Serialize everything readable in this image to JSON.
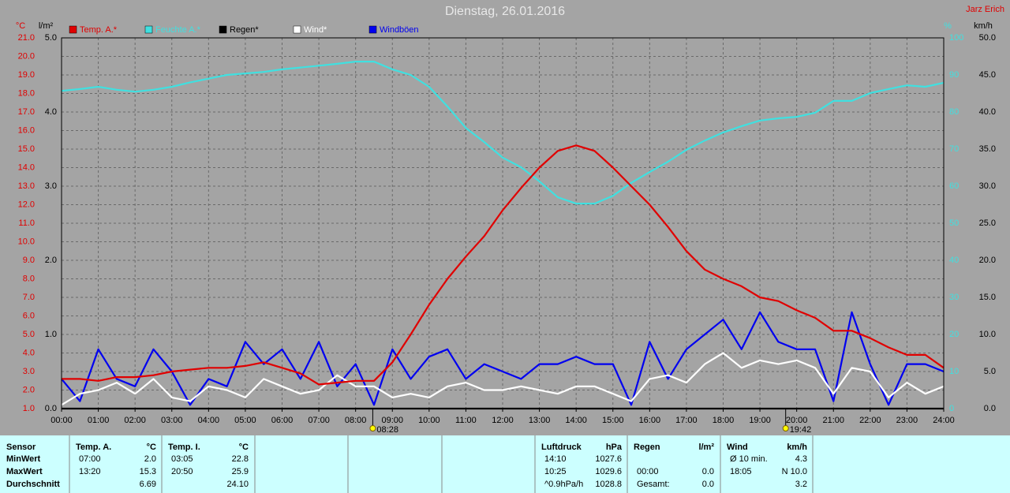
{
  "chart_data": {
    "type": "line",
    "title": "Dienstag, 26.01.2016",
    "author": "Jarz Erich",
    "ylabel": "°C",
    "y3label": "l/m²",
    "y4label": "%",
    "y2label": "km/h",
    "grid": true,
    "xlim": [
      0,
      24
    ],
    "xticks": [
      {
        "value": 0,
        "label": "00:00"
      },
      {
        "value": 1,
        "label": "01:00"
      },
      {
        "value": 2,
        "label": "02:00"
      },
      {
        "value": 3,
        "label": "03:00"
      },
      {
        "value": 4,
        "label": "04:00"
      },
      {
        "value": 5,
        "label": "05:00"
      },
      {
        "value": 6,
        "label": "06:00"
      },
      {
        "value": 7,
        "label": "07:00"
      },
      {
        "value": 8,
        "label": "08:00"
      },
      {
        "value": 9,
        "label": "09:00"
      },
      {
        "value": 10,
        "label": "10:00"
      },
      {
        "value": 11,
        "label": "11:00"
      },
      {
        "value": 12,
        "label": "12:00"
      },
      {
        "value": 13,
        "label": "13:00"
      },
      {
        "value": 14,
        "label": "14:00"
      },
      {
        "value": 15,
        "label": "15:00"
      },
      {
        "value": 16,
        "label": "16:00"
      },
      {
        "value": 17,
        "label": "17:00"
      },
      {
        "value": 18,
        "label": "18:00"
      },
      {
        "value": 19,
        "label": "19:00"
      },
      {
        "value": 20,
        "label": "20:00"
      },
      {
        "value": 21,
        "label": "21:00"
      },
      {
        "value": 22,
        "label": "22:00"
      },
      {
        "value": 23,
        "label": "23:00"
      },
      {
        "value": 24,
        "label": "24:00"
      }
    ],
    "ylim": [
      1,
      21
    ],
    "yticks": [
      {
        "value": 1,
        "label": "1.0"
      },
      {
        "value": 2,
        "label": "2.0"
      },
      {
        "value": 3,
        "label": "3.0"
      },
      {
        "value": 4,
        "label": "4.0"
      },
      {
        "value": 5,
        "label": "5.0"
      },
      {
        "value": 6,
        "label": "6.0"
      },
      {
        "value": 7,
        "label": "7.0"
      },
      {
        "value": 8,
        "label": "8.0"
      },
      {
        "value": 9,
        "label": "9.0"
      },
      {
        "value": 10,
        "label": "10.0"
      },
      {
        "value": 11,
        "label": "11.0"
      },
      {
        "value": 12,
        "label": "12.0"
      },
      {
        "value": 13,
        "label": "13.0"
      },
      {
        "value": 14,
        "label": "14.0"
      },
      {
        "value": 15,
        "label": "15.0"
      },
      {
        "value": 16,
        "label": "16.0"
      },
      {
        "value": 17,
        "label": "17.0"
      },
      {
        "value": 18,
        "label": "18.0"
      },
      {
        "value": 19,
        "label": "19.0"
      },
      {
        "value": 20,
        "label": "20.0"
      },
      {
        "value": 21,
        "label": "21.0"
      }
    ],
    "y3lim": [
      0,
      5
    ],
    "y3ticks": [
      {
        "value": 0,
        "label": "0.0"
      },
      {
        "value": 1,
        "label": "1.0"
      },
      {
        "value": 2,
        "label": "2.0"
      },
      {
        "value": 3,
        "label": "3.0"
      },
      {
        "value": 4,
        "label": "4.0"
      },
      {
        "value": 5,
        "label": "5.0"
      }
    ],
    "y4lim": [
      0,
      100
    ],
    "y4ticks": [
      0,
      10,
      20,
      30,
      40,
      50,
      60,
      70,
      80,
      90,
      100
    ],
    "y2lim": [
      0,
      50
    ],
    "y2ticks": [
      {
        "value": 0,
        "label": "0.0"
      },
      {
        "value": 5,
        "label": "5.0"
      },
      {
        "value": 10,
        "label": "10.0"
      },
      {
        "value": 15,
        "label": "15.0"
      },
      {
        "value": 20,
        "label": "20.0"
      },
      {
        "value": 25,
        "label": "25.0"
      },
      {
        "value": 30,
        "label": "30.0"
      },
      {
        "value": 35,
        "label": "35.0"
      },
      {
        "value": 40,
        "label": "40.0"
      },
      {
        "value": 45,
        "label": "45.0"
      },
      {
        "value": 50,
        "label": "50.0"
      }
    ],
    "x": [
      0,
      0.5,
      1,
      1.5,
      2,
      2.5,
      3,
      3.5,
      4,
      4.5,
      5,
      5.5,
      6,
      6.5,
      7,
      7.5,
      8,
      8.5,
      9,
      9.5,
      10,
      10.5,
      11,
      11.5,
      12,
      12.5,
      13,
      13.5,
      14,
      14.5,
      15,
      15.5,
      16,
      16.5,
      17,
      17.5,
      18,
      18.5,
      19,
      19.5,
      20,
      20.5,
      21,
      21.5,
      22,
      22.5,
      23,
      23.5,
      24
    ],
    "series": [
      {
        "name": "Temp. A.*",
        "color": "#e00000",
        "axis": "y",
        "values": [
          2.6,
          2.6,
          2.5,
          2.7,
          2.7,
          2.8,
          3.0,
          3.1,
          3.2,
          3.2,
          3.3,
          3.5,
          3.2,
          2.9,
          2.3,
          2.4,
          2.5,
          2.5,
          3.5,
          5.0,
          6.6,
          8.0,
          9.2,
          10.3,
          11.7,
          12.9,
          14.0,
          14.9,
          15.2,
          14.9,
          14.0,
          13.0,
          12.0,
          10.8,
          9.5,
          8.5,
          8.0,
          7.6,
          7.0,
          6.8,
          6.3,
          5.9,
          5.2,
          5.2,
          4.8,
          4.3,
          3.9,
          3.9,
          3.2
        ]
      },
      {
        "name": "Feuchte A.*",
        "color": "#40e0e0",
        "axis": "y4",
        "values": [
          85.7,
          86.2,
          86.8,
          86,
          85.5,
          86,
          86.8,
          88,
          89,
          90,
          90.4,
          90.8,
          91.5,
          92,
          92.5,
          93,
          93.6,
          93.6,
          91.5,
          90,
          86.8,
          81.5,
          75.7,
          71.9,
          67.7,
          65.1,
          61.3,
          57,
          55.3,
          55.3,
          57.4,
          60.9,
          63.8,
          66.6,
          69.8,
          72.3,
          74.5,
          76.2,
          77.7,
          78.3,
          78.7,
          79.8,
          83,
          83,
          85.1,
          86.2,
          87.2,
          86.8,
          87.9
        ]
      },
      {
        "name": "Regen*",
        "color": "#000000",
        "axis": "y3",
        "values": [
          0,
          0,
          0,
          0,
          0,
          0,
          0,
          0,
          0,
          0,
          0,
          0,
          0,
          0,
          0,
          0,
          0,
          0,
          0,
          0,
          0,
          0,
          0,
          0,
          0,
          0,
          0,
          0,
          0,
          0,
          0,
          0,
          0,
          0,
          0,
          0,
          0,
          0,
          0,
          0,
          0,
          0,
          0,
          0,
          0,
          0,
          0,
          0,
          0
        ]
      },
      {
        "name": "Wind*",
        "color": "#ffffff",
        "axis": "y2",
        "values": [
          0.5,
          2,
          2.5,
          3.5,
          2,
          4,
          1.5,
          1,
          3,
          2.5,
          1.5,
          4,
          3,
          2,
          2.5,
          4.5,
          3,
          3,
          1.5,
          2,
          1.5,
          3,
          3.5,
          2.5,
          2.5,
          3,
          2.5,
          2,
          3,
          3,
          2,
          1,
          4,
          4.5,
          3.5,
          6,
          7.5,
          5.5,
          6.5,
          6,
          6.5,
          5.5,
          2,
          5.5,
          5,
          1.5,
          3.5,
          2,
          3
        ]
      },
      {
        "name": "Windböen",
        "color": "#0000f0",
        "axis": "y2",
        "values": [
          4,
          1,
          8,
          4,
          3,
          8,
          5,
          0.5,
          4,
          3,
          9,
          6,
          8,
          4,
          9,
          3,
          6,
          0.5,
          8,
          4,
          7,
          8,
          4,
          6,
          5,
          4,
          6,
          6,
          7,
          6,
          6,
          0.5,
          9,
          4,
          8,
          10,
          12,
          8,
          13,
          9,
          8,
          8,
          1,
          13,
          6,
          0.5,
          6,
          6,
          5
        ]
      }
    ],
    "sun": [
      {
        "x": 8.467,
        "label": "08:28"
      },
      {
        "x": 19.7,
        "label": "19:42"
      }
    ]
  },
  "table": {
    "columns": [
      {
        "header": "Sensor",
        "rows": [
          "MinWert",
          "MaxWert",
          "Durchschnitt"
        ]
      },
      {
        "header": "Temp. A.",
        "unit": "°C",
        "rows": [
          {
            "time": "07:00",
            "value": "2.0"
          },
          {
            "time": "13:20",
            "value": "15.3"
          },
          {
            "value": "6.69"
          }
        ]
      },
      {
        "header": "Temp. I.",
        "unit": "°C",
        "rows": [
          {
            "time": "03:05",
            "value": "22.8"
          },
          {
            "time": "20:50",
            "value": "25.9"
          },
          {
            "value": "24.10"
          }
        ]
      },
      {
        "header": "Luftdruck",
        "unit": "hPa",
        "rows": [
          {
            "time": "14:10",
            "value": "1027.6"
          },
          {
            "time": "10:25",
            "value": "1029.6"
          },
          {
            "time": "^0.9hPa/h",
            "value": "1028.8"
          }
        ]
      },
      {
        "header": "Regen",
        "unit": "l/m²",
        "rows": [
          null,
          {
            "time": "00:00",
            "value": "0.0"
          },
          {
            "time": "Gesamt:",
            "value": "0.0"
          }
        ]
      },
      {
        "header": "Wind",
        "unit": "km/h",
        "rows": [
          {
            "time": "Ø 10 min.",
            "value": "4.3"
          },
          {
            "time": "18:05",
            "value": "N 10.0"
          },
          {
            "value": "3.2"
          }
        ]
      }
    ]
  }
}
